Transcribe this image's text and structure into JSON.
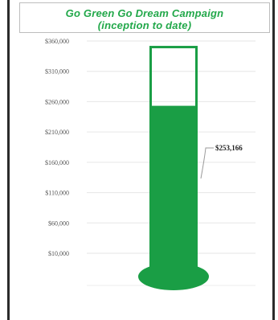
{
  "chart_data": {
    "type": "bar",
    "title": [
      "Go Green Go Dream Campaign",
      "(inception to date)"
    ],
    "categories": [
      ""
    ],
    "values": [
      253166
    ],
    "goal": 350000,
    "ylim": [
      0,
      360000
    ],
    "ytick_values": [
      10000,
      60000,
      110000,
      160000,
      210000,
      260000,
      310000,
      360000
    ],
    "ytick_labels": [
      "$10,000",
      "$60,000",
      "$110,000",
      "$160,000",
      "$210,000",
      "$260,000",
      "$310,000",
      "$360,000"
    ],
    "data_label": "$253,166",
    "grid": true,
    "legend": "none",
    "colors": {
      "fill": "#1a9e45",
      "title": "#22a84a"
    }
  }
}
